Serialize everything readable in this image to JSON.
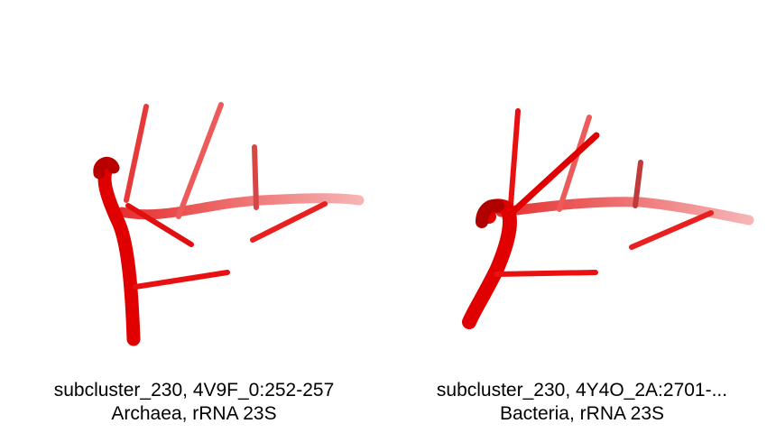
{
  "panels": [
    {
      "caption_line1": "subcluster_230, 4V9F_0:252-257",
      "caption_line2": "Archaea, rRNA 23S"
    },
    {
      "caption_line1": "subcluster_230, 4Y4O_2A:2701-...",
      "caption_line2": "Bacteria, rRNA 23S"
    }
  ],
  "colors": {
    "backbone": "#e00000",
    "backbone_faded": "#f08a8a",
    "base": "#e81010"
  }
}
